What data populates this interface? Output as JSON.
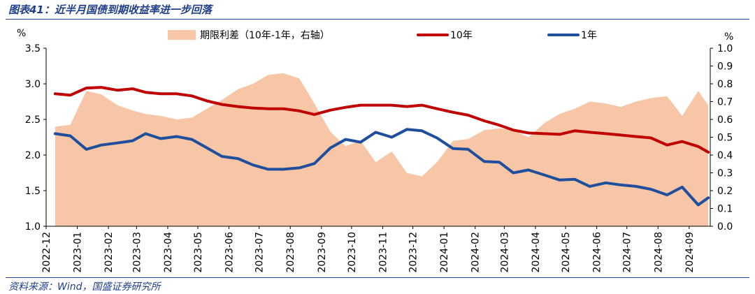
{
  "header": {
    "title": "图表41：近半月国债到期收益率进一步回落"
  },
  "footer": {
    "source": "资料来源：Wind，国盛证券研究所"
  },
  "colors": {
    "spread": "#f7c6a6",
    "y10": "#c00000",
    "y1": "#1f4e9c",
    "rule": "#2b4c9b"
  },
  "chart_data": {
    "type": "line",
    "left_axis": {
      "unit": "%",
      "min": 1.0,
      "max": 3.5,
      "ticks": [
        "1.0",
        "1.5",
        "2.0",
        "2.5",
        "3.0",
        "3.5"
      ]
    },
    "right_axis": {
      "unit": "%",
      "min": 0.0,
      "max": 1.0,
      "ticks": [
        "0.0",
        "0.1",
        "0.2",
        "0.3",
        "0.4",
        "0.5",
        "0.6",
        "0.7",
        "0.8",
        "0.9",
        "1.0"
      ]
    },
    "x_ticks": [
      "2022-12",
      "2023-01",
      "2023-02",
      "2023-03",
      "2023-04",
      "2023-05",
      "2023-06",
      "2023-07",
      "2023-08",
      "2023-09",
      "2023-10",
      "2023-11",
      "2023-12",
      "2024-01",
      "2024-02",
      "2024-03",
      "2024-04",
      "2024-05",
      "2024-06",
      "2024-07",
      "2024-08",
      "2024-09"
    ],
    "legend": {
      "spread": "期限利差（10年-1年，右轴）",
      "y10": "10年",
      "y1": "1年"
    },
    "x_start": "2022-12-01",
    "x_end": "2024-09-22",
    "series": [
      {
        "key": "y10",
        "axis": "left",
        "type": "line",
        "x": [
          "2022-12-10",
          "2022-12-25",
          "2023-01-10",
          "2023-01-25",
          "2023-02-10",
          "2023-02-25",
          "2023-03-10",
          "2023-03-25",
          "2023-04-10",
          "2023-04-25",
          "2023-05-10",
          "2023-05-25",
          "2023-06-10",
          "2023-06-25",
          "2023-07-10",
          "2023-07-25",
          "2023-08-10",
          "2023-08-25",
          "2023-09-10",
          "2023-09-25",
          "2023-10-10",
          "2023-10-25",
          "2023-11-10",
          "2023-11-25",
          "2023-12-10",
          "2023-12-25",
          "2024-01-10",
          "2024-01-25",
          "2024-02-10",
          "2024-02-25",
          "2024-03-10",
          "2024-03-25",
          "2024-04-10",
          "2024-04-25",
          "2024-05-10",
          "2024-05-25",
          "2024-06-10",
          "2024-06-25",
          "2024-07-10",
          "2024-07-25",
          "2024-08-10",
          "2024-08-25",
          "2024-09-10",
          "2024-09-20"
        ],
        "y": [
          2.86,
          2.84,
          2.94,
          2.95,
          2.91,
          2.93,
          2.88,
          2.86,
          2.86,
          2.83,
          2.76,
          2.71,
          2.68,
          2.66,
          2.65,
          2.65,
          2.62,
          2.57,
          2.63,
          2.67,
          2.7,
          2.7,
          2.7,
          2.68,
          2.7,
          2.65,
          2.6,
          2.56,
          2.48,
          2.42,
          2.35,
          2.31,
          2.3,
          2.29,
          2.34,
          2.32,
          2.3,
          2.28,
          2.26,
          2.24,
          2.14,
          2.19,
          2.12,
          2.04
        ]
      },
      {
        "key": "y1",
        "axis": "left",
        "type": "line",
        "x": [
          "2022-12-10",
          "2022-12-25",
          "2023-01-10",
          "2023-01-25",
          "2023-02-10",
          "2023-02-25",
          "2023-03-10",
          "2023-03-25",
          "2023-04-10",
          "2023-04-25",
          "2023-05-10",
          "2023-05-25",
          "2023-06-10",
          "2023-06-25",
          "2023-07-10",
          "2023-07-25",
          "2023-08-10",
          "2023-08-25",
          "2023-09-10",
          "2023-09-25",
          "2023-10-10",
          "2023-10-25",
          "2023-11-10",
          "2023-11-25",
          "2023-12-10",
          "2023-12-25",
          "2024-01-10",
          "2024-01-25",
          "2024-02-10",
          "2024-02-25",
          "2024-03-10",
          "2024-03-25",
          "2024-04-10",
          "2024-04-25",
          "2024-05-10",
          "2024-05-25",
          "2024-06-10",
          "2024-06-25",
          "2024-07-10",
          "2024-07-25",
          "2024-08-10",
          "2024-08-25",
          "2024-09-10",
          "2024-09-20"
        ],
        "y": [
          2.3,
          2.27,
          2.08,
          2.14,
          2.17,
          2.2,
          2.3,
          2.23,
          2.26,
          2.22,
          2.1,
          1.98,
          1.95,
          1.86,
          1.8,
          1.8,
          1.82,
          1.88,
          2.1,
          2.22,
          2.18,
          2.32,
          2.25,
          2.36,
          2.34,
          2.24,
          2.09,
          2.08,
          1.91,
          1.9,
          1.75,
          1.79,
          1.72,
          1.65,
          1.66,
          1.56,
          1.61,
          1.58,
          1.56,
          1.52,
          1.44,
          1.55,
          1.3,
          1.4
        ]
      },
      {
        "key": "spread",
        "axis": "right",
        "type": "area",
        "x": [
          "2022-12-10",
          "2022-12-25",
          "2023-01-10",
          "2023-01-25",
          "2023-02-10",
          "2023-02-25",
          "2023-03-10",
          "2023-03-25",
          "2023-04-10",
          "2023-04-25",
          "2023-05-10",
          "2023-05-25",
          "2023-06-10",
          "2023-06-25",
          "2023-07-10",
          "2023-07-25",
          "2023-08-10",
          "2023-08-25",
          "2023-09-10",
          "2023-09-25",
          "2023-10-10",
          "2023-10-25",
          "2023-11-10",
          "2023-11-25",
          "2023-12-10",
          "2023-12-25",
          "2024-01-10",
          "2024-01-25",
          "2024-02-10",
          "2024-02-25",
          "2024-03-10",
          "2024-03-25",
          "2024-04-10",
          "2024-04-25",
          "2024-05-10",
          "2024-05-25",
          "2024-06-10",
          "2024-06-25",
          "2024-07-10",
          "2024-07-25",
          "2024-08-10",
          "2024-08-25",
          "2024-09-10",
          "2024-09-20"
        ],
        "y": [
          0.56,
          0.57,
          0.76,
          0.74,
          0.68,
          0.65,
          0.63,
          0.62,
          0.6,
          0.61,
          0.66,
          0.71,
          0.77,
          0.8,
          0.85,
          0.86,
          0.83,
          0.69,
          0.53,
          0.45,
          0.48,
          0.36,
          0.42,
          0.3,
          0.28,
          0.36,
          0.48,
          0.49,
          0.54,
          0.55,
          0.54,
          0.5,
          0.58,
          0.63,
          0.66,
          0.7,
          0.69,
          0.67,
          0.7,
          0.72,
          0.73,
          0.62,
          0.76,
          0.68
        ]
      }
    ]
  }
}
